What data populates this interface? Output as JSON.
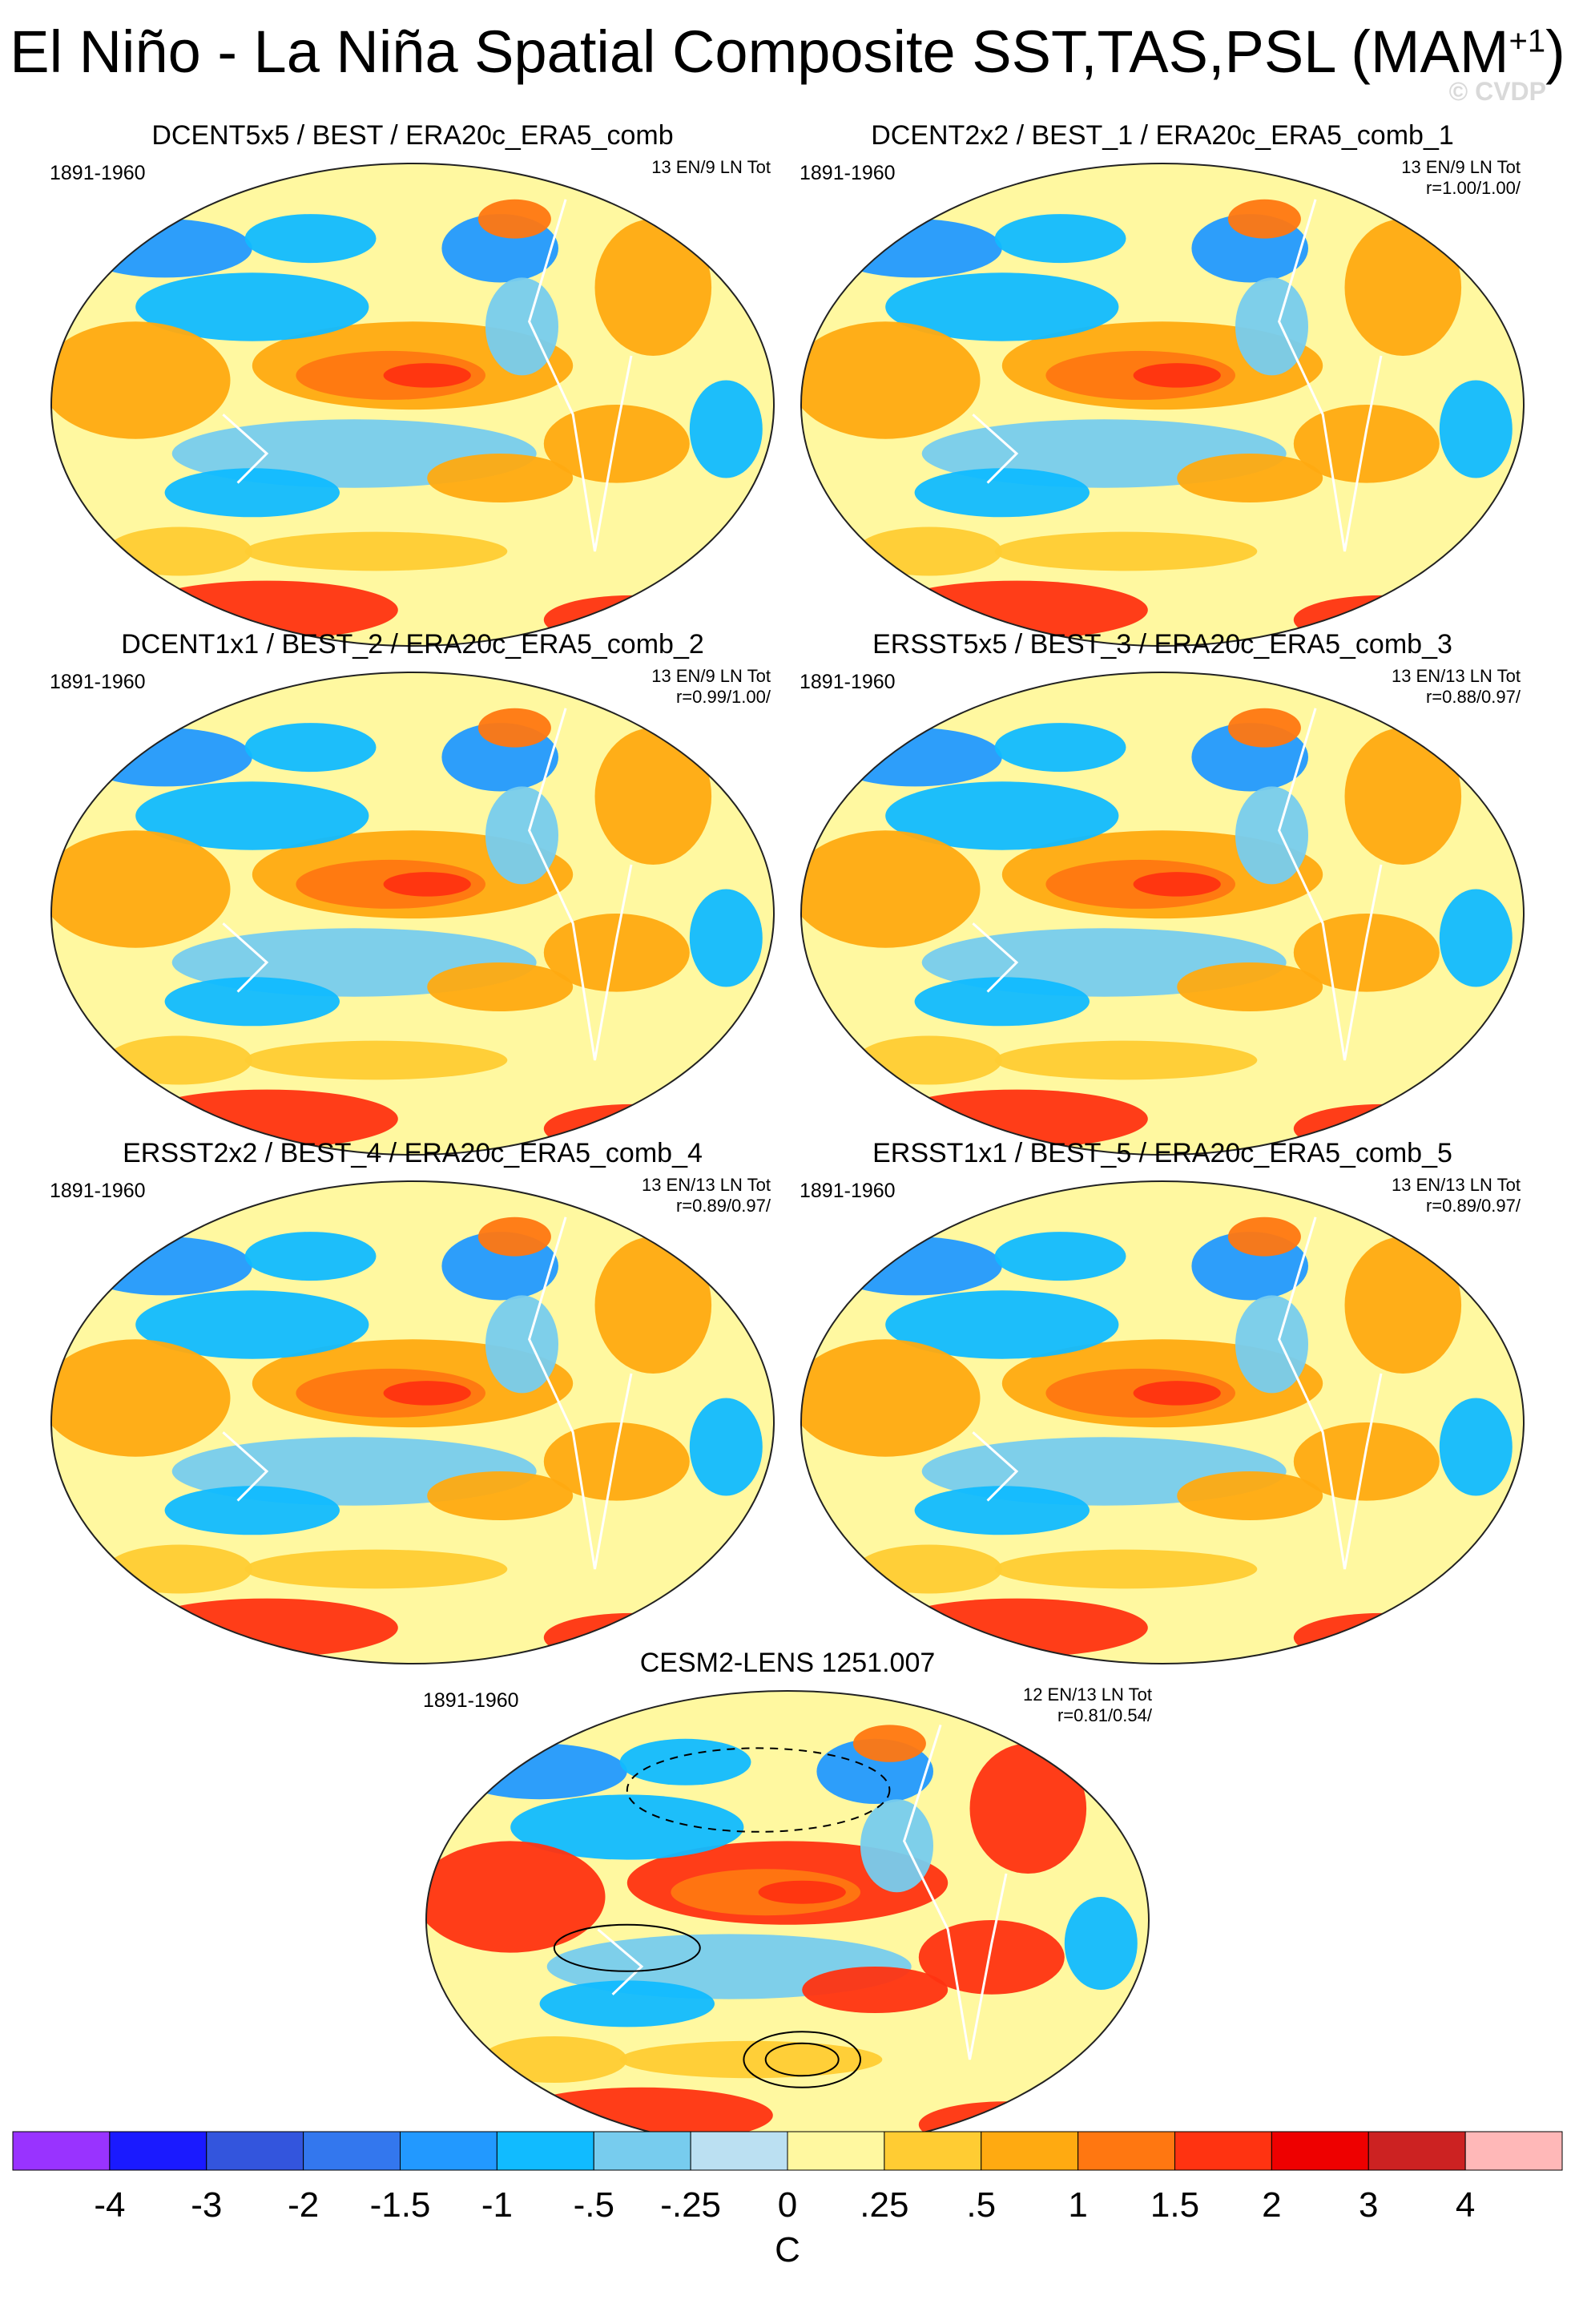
{
  "title": "El Niño - La Niña Spatial Composite SST,TAS,PSL (MAM",
  "title_sup": "+1",
  "title_end": ")",
  "watermark": "© CVDP",
  "panels": [
    {
      "title": "DCENT5x5 / BEST / ERA20c_ERA5_comb",
      "years": "1891-1960",
      "info1": "13 EN/9 LN Tot",
      "info2": ""
    },
    {
      "title": "DCENT2x2 / BEST_1 / ERA20c_ERA5_comb_1",
      "years": "1891-1960",
      "info1": "13 EN/9 LN Tot",
      "info2": "r=1.00/1.00/"
    },
    {
      "title": "DCENT1x1 / BEST_2 / ERA20c_ERA5_comb_2",
      "years": "1891-1960",
      "info1": "13 EN/9 LN Tot",
      "info2": "r=0.99/1.00/"
    },
    {
      "title": "ERSST5x5 / BEST_3 / ERA20c_ERA5_comb_3",
      "years": "1891-1960",
      "info1": "13 EN/13 LN Tot",
      "info2": "r=0.88/0.97/"
    },
    {
      "title": "ERSST2x2 / BEST_4 / ERA20c_ERA5_comb_4",
      "years": "1891-1960",
      "info1": "13 EN/13 LN Tot",
      "info2": "r=0.89/0.97/"
    },
    {
      "title": "ERSST1x1 / BEST_5 / ERA20c_ERA5_comb_5",
      "years": "1891-1960",
      "info1": "13 EN/13 LN Tot",
      "info2": "r=0.89/0.97/"
    },
    {
      "title": "CESM2-LENS 1251.007",
      "years": "1891-1960",
      "info1": "12 EN/13 LN Tot",
      "info2": "r=0.81/0.54/"
    }
  ],
  "colorbar": {
    "unit": "C",
    "colors": [
      "#9933ff",
      "#1a1aff",
      "#3355dd",
      "#3377ee",
      "#2299ff",
      "#11bbff",
      "#77ccee",
      "#bbe0f2",
      "#fff8a0",
      "#ffcc33",
      "#ffaa11",
      "#ff7711",
      "#ff3311",
      "#ee0000",
      "#cc2222",
      "#ffb8b8"
    ],
    "labels": [
      "-4",
      "-3",
      "-2",
      "-1.5",
      "-1",
      "-.5",
      "-.25",
      "0",
      ".25",
      ".5",
      "1",
      "1.5",
      "2",
      "3",
      "4"
    ]
  }
}
